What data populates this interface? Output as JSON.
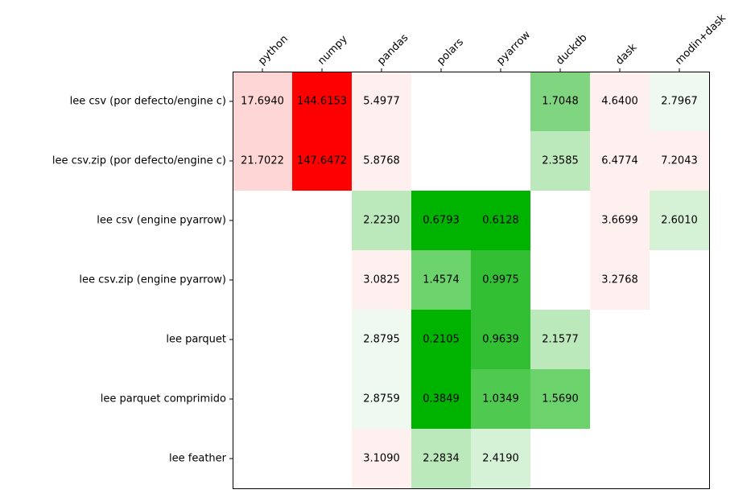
{
  "chart_data": {
    "type": "heatmap",
    "title": "",
    "xlabel": "",
    "ylabel": "",
    "x_tick_labels": [
      "python",
      "numpy",
      "pandas",
      "polars",
      "pyarrow",
      "duckdb",
      "dask",
      "modin+dask"
    ],
    "y_tick_labels": [
      "lee csv (por defecto/engine c)",
      "lee csv.zip (por defecto/engine c)",
      "lee csv (engine pyarrow)",
      "lee csv.zip (engine pyarrow)",
      "lee parquet",
      "lee parquet comprimido",
      "lee feather"
    ],
    "values": [
      [
        17.694,
        144.6153,
        5.4977,
        null,
        null,
        1.7048,
        4.64,
        2.7967
      ],
      [
        21.7022,
        147.6472,
        5.8768,
        null,
        null,
        2.3585,
        6.4774,
        7.2043
      ],
      [
        null,
        null,
        2.223,
        0.6793,
        0.6128,
        null,
        3.6699,
        2.601
      ],
      [
        null,
        null,
        3.0825,
        1.4574,
        0.9975,
        null,
        3.2768,
        null
      ],
      [
        null,
        null,
        2.8795,
        0.2105,
        0.9639,
        2.1577,
        null,
        null
      ],
      [
        null,
        null,
        2.8759,
        0.3849,
        1.0349,
        1.569,
        null,
        null
      ],
      [
        null,
        null,
        3.109,
        2.2834,
        2.419,
        null,
        null,
        null
      ]
    ],
    "value_labels": [
      [
        "17.6940",
        "144.6153",
        "5.4977",
        "",
        "",
        "1.7048",
        "4.6400",
        "2.7967"
      ],
      [
        "21.7022",
        "147.6472",
        "5.8768",
        "",
        "",
        "2.3585",
        "6.4774",
        "7.2043"
      ],
      [
        "",
        "",
        "2.2230",
        "0.6793",
        "0.6128",
        "",
        "3.6699",
        "2.6010"
      ],
      [
        "",
        "",
        "3.0825",
        "1.4574",
        "0.9975",
        "",
        "3.2768",
        ""
      ],
      [
        "",
        "",
        "2.8795",
        "0.2105",
        "0.9639",
        "2.1577",
        "",
        ""
      ],
      [
        "",
        "",
        "2.8759",
        "0.3849",
        "1.0349",
        "1.5690",
        "",
        ""
      ],
      [
        "",
        "",
        "3.1090",
        "2.2834",
        "2.4190",
        "",
        "",
        ""
      ]
    ],
    "cell_colors": [
      [
        "#ffd6d6",
        "#ff0000",
        "#fff0f0",
        null,
        null,
        "#80d680",
        "#fff0f0",
        "#f0f9f0"
      ],
      [
        "#ffd6d6",
        "#ff0000",
        "#fff0f0",
        null,
        null,
        "#bce9bc",
        "#fff0f0",
        "#fff0f0"
      ],
      [
        null,
        null,
        "#bce9bc",
        "#00b300",
        "#00b300",
        null,
        "#fff0f0",
        "#d6f2d6"
      ],
      [
        null,
        null,
        "#fff0f0",
        "#6cd26c",
        "#33bf33",
        null,
        "#fff0f0",
        null
      ],
      [
        null,
        null,
        "#f0f9f0",
        "#00b300",
        "#33bf33",
        "#bce9bc",
        null,
        null
      ],
      [
        null,
        null,
        "#f0f9f0",
        "#00b300",
        "#4fc94f",
        "#6cd26c",
        null,
        null
      ],
      [
        null,
        null,
        "#fff0f0",
        "#bce9bc",
        "#d6f2d6",
        null,
        null,
        null
      ]
    ],
    "grid": false,
    "legend": "none"
  }
}
